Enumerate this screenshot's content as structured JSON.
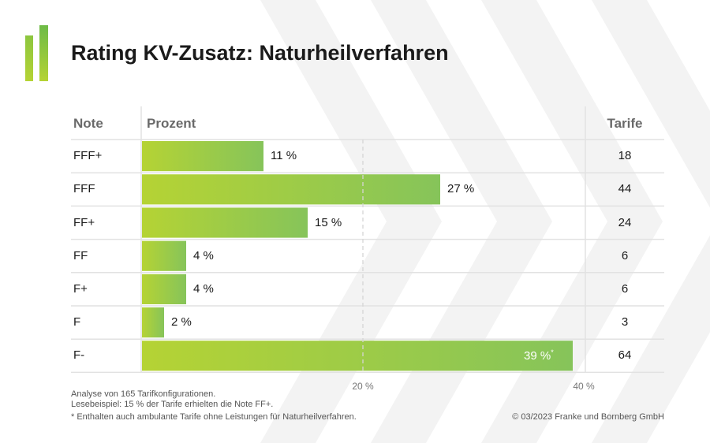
{
  "title": "Rating KV-Zusatz: Naturheilverfahren",
  "headers": {
    "note": "Note",
    "prozent": "Prozent",
    "tarife": "Tarife"
  },
  "chart_data": {
    "type": "bar",
    "orientation": "horizontal",
    "title": "Rating KV-Zusatz: Naturheilverfahren",
    "categories": [
      "FFF+",
      "FFF",
      "FF+",
      "FF",
      "F+",
      "F",
      "F-"
    ],
    "values": [
      11,
      27,
      15,
      4,
      4,
      2,
      39
    ],
    "value_labels": [
      "11 %",
      "27 %",
      "15 %",
      "4 %",
      "4 %",
      "2 %",
      "39 %"
    ],
    "value_label_suffix": [
      "",
      "",
      "",
      "",
      "",
      "",
      "*"
    ],
    "tarife": [
      18,
      44,
      24,
      6,
      6,
      3,
      64
    ],
    "xlim": [
      0,
      40
    ],
    "ticks": [
      20,
      40
    ],
    "tick_labels": [
      "20 %",
      "40 %"
    ],
    "colors": {
      "bar_start": "#b5d334",
      "bar_end": "#86c45a",
      "grid": "#dddddd"
    }
  },
  "notes": {
    "line1": "Analyse von 165 Tarifkonfigurationen.",
    "line2": "Lesebeispiel: 15 % der Tarife erhielten die Note FF+.",
    "line3": "* Enthalten auch ambulante Tarife ohne Leistungen für Naturheilverfahren.",
    "copyright": "© 03/2023 Franke und Bornberg GmbH"
  }
}
